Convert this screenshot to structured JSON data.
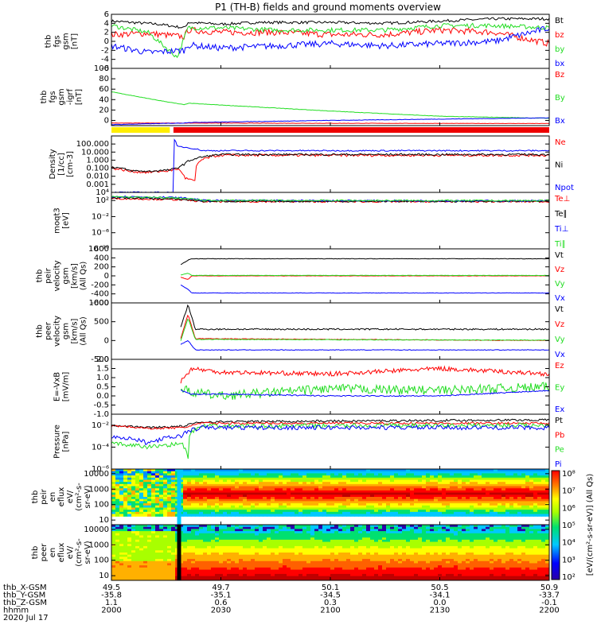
{
  "title": "P1 (TH-B) fields and ground moments overview",
  "colors": {
    "black": "#000000",
    "red": "#ff0000",
    "green": "#22dd22",
    "blue": "#0000ff",
    "bar_yellow": "#ffee00",
    "bar_red": "#ee0000"
  },
  "chart_data": [
    {
      "type": "line",
      "id": "fgs",
      "ylabel": [
        "thb",
        "fgs",
        "gsm",
        "[nT]"
      ],
      "ylim": [
        -6,
        6
      ],
      "ticks": [
        "6",
        "4",
        "2",
        "0",
        "-2",
        "-4",
        "-6"
      ],
      "legend": [
        {
          "name": "Bt",
          "color": "#000000"
        },
        {
          "name": "bz",
          "color": "#ff0000"
        },
        {
          "name": "by",
          "color": "#22dd22"
        },
        {
          "name": "bx",
          "color": "#0000ff"
        }
      ],
      "series": [
        {
          "name": "Bt",
          "color": "#000000",
          "x": [
            "2000",
            "2013",
            "2020",
            "2021",
            "2030",
            "2040",
            "2100",
            "2115",
            "2130",
            "2145",
            "2200"
          ],
          "y": [
            4.5,
            3.8,
            3.0,
            4.2,
            3.8,
            4.2,
            4.2,
            4.0,
            4.5,
            5.0,
            5.0
          ],
          "noise": 0.3
        },
        {
          "name": "bz",
          "color": "#ff0000",
          "x": [
            "2000",
            "2010",
            "2020",
            "2021",
            "2030",
            "2045",
            "2100",
            "2115",
            "2130",
            "2145",
            "2200"
          ],
          "y": [
            1.5,
            1.8,
            1.0,
            2.5,
            2.0,
            2.0,
            1.5,
            1.5,
            2.5,
            2.0,
            -0.5
          ],
          "noise": 0.7
        },
        {
          "name": "by",
          "color": "#22dd22",
          "x": [
            "2000",
            "2010",
            "2018",
            "2021",
            "2030",
            "2045",
            "2100",
            "2115",
            "2130",
            "2145",
            "2200"
          ],
          "y": [
            3.5,
            2.0,
            -3.5,
            3.0,
            3.0,
            2.5,
            2.5,
            2.5,
            3.5,
            3.5,
            3.0
          ],
          "noise": 0.5
        },
        {
          "name": "bx",
          "color": "#0000ff",
          "x": [
            "2000",
            "2010",
            "2020",
            "2021",
            "2030",
            "2045",
            "2100",
            "2115",
            "2130",
            "2145",
            "2200"
          ],
          "y": [
            -1.0,
            -2.5,
            -2.0,
            -0.8,
            -1.5,
            -1.0,
            -0.5,
            -1.0,
            -0.5,
            0.0,
            3.0
          ],
          "noise": 0.7
        }
      ]
    },
    {
      "type": "line",
      "id": "fgs_dsl",
      "ylabel": [
        "thb",
        "fgs",
        "gsm",
        "-igrf",
        "[nT]"
      ],
      "ylim": [
        -10,
        100
      ],
      "ticks": [
        "100",
        "80",
        "60",
        "40",
        "20",
        "0"
      ],
      "legend": [
        {
          "name": "Bz",
          "color": "#ff0000"
        },
        {
          "name": "By",
          "color": "#22dd22"
        },
        {
          "name": "Bx",
          "color": "#0000ff"
        }
      ],
      "series": [
        {
          "name": "Bz",
          "color": "#ff0000",
          "x": [
            "2000",
            "2200"
          ],
          "y": [
            -5,
            -6
          ],
          "noise": 0.3
        },
        {
          "name": "By",
          "color": "#22dd22",
          "x": [
            "2000",
            "2010",
            "2020",
            "2021",
            "2100",
            "2130",
            "2200"
          ],
          "y": [
            55,
            42,
            30,
            33,
            18,
            8,
            4
          ],
          "noise": 0.4
        },
        {
          "name": "Bx",
          "color": "#0000ff",
          "x": [
            "2000",
            "2020",
            "2021",
            "2100",
            "2200"
          ],
          "y": [
            -8,
            -5,
            -4,
            0,
            5
          ],
          "noise": 0.4
        }
      ]
    },
    {
      "type": "line",
      "id": "density",
      "log": true,
      "ylabel": [
        "Density",
        "[1/cc]",
        "[cm-3]"
      ],
      "ylim": [
        0.0001,
        1000
      ],
      "ticks": [
        "100.000",
        "10.000",
        "1.000",
        "0.100",
        "0.010",
        "0.001"
      ],
      "legend": [
        {
          "name": "Ne",
          "color": "#ff0000"
        },
        {
          "name": "Ni",
          "color": "#000000"
        },
        {
          "name": "Npot",
          "color": "#0000ff"
        }
      ],
      "series": [
        {
          "name": "Ne",
          "color": "#ff0000",
          "x": [
            "2000",
            "2005",
            "2010",
            "2016",
            "2018",
            "2020",
            "2023",
            "2030",
            "2200"
          ],
          "y": [
            0.1,
            0.04,
            0.03,
            0.05,
            0.08,
            0.006,
            0.002,
            4,
            4
          ],
          "noise": 0.15
        },
        {
          "name": "Ni",
          "color": "#000000",
          "x": [
            "2000",
            "2005",
            "2010",
            "2016",
            "2017",
            "2018",
            "2020",
            "2023",
            "2030",
            "2200"
          ],
          "y": [
            0.15,
            0.05,
            0.04,
            0.06,
            0.08,
            0.1,
            0.3,
            1.5,
            5,
            5
          ],
          "noise": 0.12
        },
        {
          "name": "Npot",
          "color": "#0000ff",
          "x": [
            "2000",
            "2017.2",
            "2017.25",
            "2018",
            "2025",
            "2030",
            "2200"
          ],
          "y": [
            0.0001,
            0.0001,
            300,
            50,
            15,
            15,
            15
          ],
          "noise": 0.08
        }
      ]
    },
    {
      "type": "line",
      "id": "temp",
      "log": true,
      "ylabel": [
        "moqt3",
        "[eV]"
      ],
      "ylim": [
        1e-10,
        10000.0
      ],
      "ticks": [
        "10^4",
        "10^2",
        "10^-2",
        "10^-6",
        "10^-10"
      ],
      "legend": [
        {
          "name": "Te⊥",
          "color": "#ff0000"
        },
        {
          "name": "Te∥",
          "color": "#000000"
        },
        {
          "name": "Ti⊥",
          "color": "#0000ff"
        },
        {
          "name": "Ti∥",
          "color": "#22dd22"
        }
      ],
      "series": [
        {
          "name": "Te⊥",
          "color": "#ff0000",
          "x": [
            "2000",
            "2018",
            "2025",
            "2200"
          ],
          "y": [
            300,
            150,
            50,
            50
          ],
          "noise": 0.2
        },
        {
          "name": "Te∥",
          "color": "#000000",
          "x": [
            "2000",
            "2018",
            "2025",
            "2200"
          ],
          "y": [
            500,
            200,
            60,
            60
          ],
          "noise": 0.2
        },
        {
          "name": "Ti⊥",
          "color": "#0000ff",
          "x": [
            "2000",
            "2018",
            "2025",
            "2200"
          ],
          "y": [
            1000,
            500,
            100,
            80
          ],
          "noise": 0.2
        },
        {
          "name": "Ti∥",
          "color": "#22dd22",
          "x": [
            "2000",
            "2018",
            "2025",
            "2200"
          ],
          "y": [
            800,
            400,
            100,
            90
          ],
          "noise": 0.2
        }
      ]
    },
    {
      "type": "line",
      "id": "peir_vel",
      "ylabel": [
        "thb",
        "peir",
        "velocity",
        "gsm",
        "[km/s]",
        "(All Qs)"
      ],
      "ylim": [
        -600,
        600
      ],
      "ticks": [
        "600",
        "400",
        "200",
        "0",
        "-200",
        "-400",
        "-600"
      ],
      "legend": [
        {
          "name": "Vt",
          "color": "#000000"
        },
        {
          "name": "Vz",
          "color": "#ff0000"
        },
        {
          "name": "Vy",
          "color": "#22dd22"
        },
        {
          "name": "Vx",
          "color": "#0000ff"
        }
      ],
      "series": [
        {
          "name": "Vt",
          "color": "#000000",
          "x": [
            "2019",
            "2021",
            "2022",
            "2200"
          ],
          "y": [
            250,
            350,
            380,
            380
          ],
          "noise": 4
        },
        {
          "name": "Vz",
          "color": "#ff0000",
          "x": [
            "2019",
            "2021",
            "2022",
            "2200"
          ],
          "y": [
            -30,
            -80,
            0,
            0
          ],
          "noise": 3
        },
        {
          "name": "Vy",
          "color": "#22dd22",
          "x": [
            "2019",
            "2021",
            "2022",
            "2200"
          ],
          "y": [
            20,
            60,
            10,
            10
          ],
          "noise": 3
        },
        {
          "name": "Vx",
          "color": "#0000ff",
          "x": [
            "2019",
            "2021",
            "2022",
            "2200"
          ],
          "y": [
            -200,
            -300,
            -380,
            -380
          ],
          "noise": 4
        }
      ]
    },
    {
      "type": "line",
      "id": "peer_vel",
      "ylabel": [
        "thb",
        "peer",
        "velocity",
        "gsm",
        "[km/s]",
        "(All Qs)"
      ],
      "ylim": [
        -500,
        1000
      ],
      "ticks": [
        "1000",
        "500",
        "0",
        "-500"
      ],
      "legend": [
        {
          "name": "Vt",
          "color": "#000000"
        },
        {
          "name": "Vz",
          "color": "#ff0000"
        },
        {
          "name": "Vy",
          "color": "#22dd22"
        },
        {
          "name": "Vx",
          "color": "#0000ff"
        }
      ],
      "series": [
        {
          "name": "Vt",
          "color": "#000000",
          "x": [
            "2019",
            "2021",
            "2023",
            "2030",
            "2200"
          ],
          "y": [
            350,
            950,
            300,
            300,
            300
          ],
          "noise": 20
        },
        {
          "name": "Vz",
          "color": "#ff0000",
          "x": [
            "2019",
            "2021",
            "2023",
            "2200"
          ],
          "y": [
            50,
            700,
            50,
            0
          ],
          "noise": 8
        },
        {
          "name": "Vy",
          "color": "#22dd22",
          "x": [
            "2019",
            "2021",
            "2023",
            "2200"
          ],
          "y": [
            0,
            600,
            30,
            10
          ],
          "noise": 8
        },
        {
          "name": "Vx",
          "color": "#0000ff",
          "x": [
            "2019",
            "2021",
            "2023",
            "2030",
            "2200"
          ],
          "y": [
            -100,
            0,
            -250,
            -250,
            -250
          ],
          "noise": 8
        }
      ]
    },
    {
      "type": "line",
      "id": "efield",
      "ylabel": [
        "E=-VxB",
        "[mV/m]"
      ],
      "ylim": [
        -1.0,
        2.0
      ],
      "ticks": [
        "2.0",
        "1.5",
        "1.0",
        "0.5",
        "0.0",
        "-0.5",
        "-1.0"
      ],
      "legend": [
        {
          "name": "Ez",
          "color": "#ff0000"
        },
        {
          "name": "Ey",
          "color": "#22dd22"
        },
        {
          "name": "Ex",
          "color": "#0000ff"
        }
      ],
      "series": [
        {
          "name": "Ez",
          "color": "#ff0000",
          "x": [
            "2019",
            "2022",
            "2030",
            "2100",
            "2130",
            "2200"
          ],
          "y": [
            0.8,
            1.5,
            1.3,
            1.2,
            1.5,
            1.2
          ],
          "noise": 0.12
        },
        {
          "name": "Ey",
          "color": "#22dd22",
          "x": [
            "2019",
            "2022",
            "2030",
            "2100",
            "2130",
            "2200"
          ],
          "y": [
            0.4,
            0.2,
            0.0,
            0.4,
            0.3,
            0.5
          ],
          "noise": 0.25
        },
        {
          "name": "Ex",
          "color": "#0000ff",
          "x": [
            "2019",
            "2022",
            "2030",
            "2100",
            "2130",
            "2200"
          ],
          "y": [
            0.3,
            0.1,
            0.1,
            0.0,
            0.0,
            0.3
          ],
          "noise": 0.03
        }
      ]
    },
    {
      "type": "line",
      "id": "pressure",
      "log": true,
      "ylabel": [
        "Pressure",
        "[nPa]"
      ],
      "ylim": [
        1e-06,
        0.1
      ],
      "ticks": [
        "10^-2",
        "10^-4",
        "10^-6"
      ],
      "legend": [
        {
          "name": "Pt",
          "color": "#000000"
        },
        {
          "name": "Pb",
          "color": "#ff0000"
        },
        {
          "name": "Pe",
          "color": "#22dd22"
        },
        {
          "name": "Pi",
          "color": "#0000ff"
        }
      ],
      "series": [
        {
          "name": "Pt",
          "color": "#000000",
          "x": [
            "2000",
            "2010",
            "2020",
            "2025",
            "2200"
          ],
          "y": [
            0.01,
            0.006,
            0.008,
            0.02,
            0.03
          ],
          "noise": 0.1
        },
        {
          "name": "Pb",
          "color": "#ff0000",
          "x": [
            "2000",
            "2010",
            "2020",
            "2025",
            "2200"
          ],
          "y": [
            0.009,
            0.005,
            0.006,
            0.015,
            0.015
          ],
          "noise": 0.1
        },
        {
          "name": "Pe",
          "color": "#22dd22",
          "x": [
            "2000",
            "2010",
            "2019",
            "2021",
            "2025",
            "2200"
          ],
          "y": [
            0.0002,
            0.0001,
            0.0002,
            1e-05,
            0.008,
            0.01
          ],
          "noise": 0.2
        },
        {
          "name": "Pi",
          "color": "#0000ff",
          "x": [
            "2000",
            "2010",
            "2019",
            "2025",
            "2200"
          ],
          "y": [
            0.001,
            0.0002,
            0.001,
            0.006,
            0.006
          ],
          "noise": 0.2
        }
      ]
    },
    {
      "type": "heatmap",
      "id": "peir_spec",
      "log": true,
      "ylabel": [
        "thb",
        "peir",
        "en",
        "eflux",
        "eV/",
        "(cm^2-s-",
        "sr-eV)"
      ],
      "ylim": [
        5,
        20000
      ],
      "ticks": [
        "10000",
        "1000",
        "100",
        "10"
      ]
    },
    {
      "type": "heatmap",
      "id": "peer_spec",
      "log": true,
      "ylabel": [
        "thb",
        "peer",
        "en",
        "eflux",
        "eV/",
        "(cm^2-s-",
        "sr-eV)"
      ],
      "ylim": [
        5,
        20000
      ],
      "ticks": [
        "10000",
        "1000",
        "100",
        "10"
      ]
    }
  ],
  "colorbar": {
    "label": "[eV/(cm^2-s-sr-eV)] (All Qs)",
    "ticks": [
      "10^8",
      "10^7",
      "10^6",
      "10^5",
      "10^4",
      "10^3",
      "10^2"
    ]
  },
  "flag_bar": {
    "segments": [
      {
        "from": "2000",
        "to": "2016",
        "color": "#ffee00"
      },
      {
        "from": "2017",
        "to": "2200",
        "color": "#ee0000"
      }
    ]
  },
  "x_axis": {
    "x_domain": [
      "2000",
      "2200"
    ],
    "tick_positions": [
      "2000",
      "2030",
      "2100",
      "2130",
      "2200"
    ],
    "row_labels": [
      "thb_X-GSM",
      "thb_Y-GSM",
      "thb_Z-GSM",
      "hhmm",
      "2020 Jul 17"
    ],
    "columns": [
      [
        "49.5",
        "49.7",
        "50.1",
        "50.5",
        "50.9"
      ],
      [
        "-35.8",
        "-35.1",
        "-34.5",
        "-34.1",
        "-33.7"
      ],
      [
        "1.1",
        "0.6",
        "0.3",
        "0.0",
        "-0.1"
      ],
      [
        "2000",
        "2030",
        "2100",
        "2130",
        "2200"
      ]
    ]
  }
}
